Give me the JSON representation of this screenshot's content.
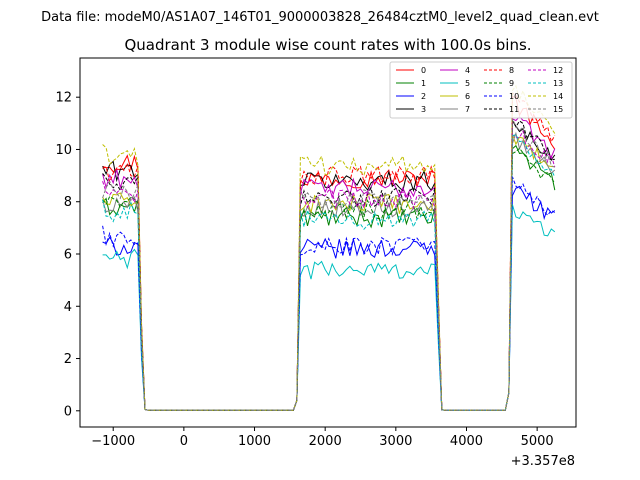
{
  "header": {
    "data_file": "Data file: modeM0/AS1A07_146T01_9000003828_26484cztM0_level2_quad_clean.evt"
  },
  "chart_data": {
    "type": "line",
    "title": "Quadrant 3 module wise count rates with 100.0s bins.",
    "xlabel": "",
    "ylabel": "",
    "xlim": [
      -1470,
      5550
    ],
    "ylim": [
      -0.62,
      13.5
    ],
    "x_ticks": [
      -1000,
      0,
      1000,
      2000,
      3000,
      4000,
      5000
    ],
    "x_tick_labels": [
      "−1000",
      "0",
      "1000",
      "2000",
      "3000",
      "4000",
      "5000"
    ],
    "y_ticks": [
      0,
      2,
      4,
      6,
      8,
      10,
      12
    ],
    "y_tick_labels": [
      "0",
      "2",
      "4",
      "6",
      "8",
      "10",
      "12"
    ],
    "x_offset_label": "+3.357e8",
    "legend_position": "top-right",
    "segments": [
      {
        "start": -1150,
        "end": -650
      },
      {
        "start": 1650,
        "end": 3550
      },
      {
        "start": 4650,
        "end": 5250
      }
    ],
    "series": [
      {
        "name": "0",
        "color": "#ff0000",
        "style": "solid",
        "levels": [
          9.5,
          8.9,
          11.4
        ]
      },
      {
        "name": "1",
        "color": "#008000",
        "style": "solid",
        "levels": [
          7.8,
          7.4,
          9.7
        ]
      },
      {
        "name": "2",
        "color": "#0000ff",
        "style": "solid",
        "levels": [
          6.3,
          6.2,
          8.2
        ]
      },
      {
        "name": "3",
        "color": "#000000",
        "style": "solid",
        "levels": [
          9.2,
          8.8,
          10.6
        ]
      },
      {
        "name": "4",
        "color": "#c000c0",
        "style": "solid",
        "levels": [
          8.9,
          8.5,
          10.9
        ]
      },
      {
        "name": "5",
        "color": "#00bfbf",
        "style": "solid",
        "levels": [
          5.8,
          5.4,
          7.4
        ]
      },
      {
        "name": "6",
        "color": "#bfbf00",
        "style": "solid",
        "levels": [
          8.0,
          7.9,
          10.2
        ]
      },
      {
        "name": "7",
        "color": "#808080",
        "style": "solid",
        "levels": [
          7.9,
          7.8,
          10.1
        ]
      },
      {
        "name": "8",
        "color": "#ff0000",
        "style": "dashed",
        "levels": [
          9.1,
          9.0,
          11.6
        ]
      },
      {
        "name": "9",
        "color": "#008000",
        "style": "dashed",
        "levels": [
          7.9,
          7.7,
          9.6
        ]
      },
      {
        "name": "10",
        "color": "#0000ff",
        "style": "dashed",
        "levels": [
          6.6,
          6.3,
          8.4
        ]
      },
      {
        "name": "11",
        "color": "#000000",
        "style": "dashed",
        "levels": [
          8.6,
          8.2,
          10.7
        ]
      },
      {
        "name": "12",
        "color": "#c000c0",
        "style": "dashed",
        "levels": [
          8.3,
          8.1,
          10.4
        ]
      },
      {
        "name": "13",
        "color": "#00bfbf",
        "style": "dashed",
        "levels": [
          7.6,
          7.3,
          10.0
        ]
      },
      {
        "name": "14",
        "color": "#bfbf00",
        "style": "dashed",
        "levels": [
          9.7,
          9.4,
          11.9
        ]
      },
      {
        "name": "15",
        "color": "#808080",
        "style": "dashed",
        "levels": [
          8.4,
          8.1,
          10.5
        ]
      }
    ]
  }
}
